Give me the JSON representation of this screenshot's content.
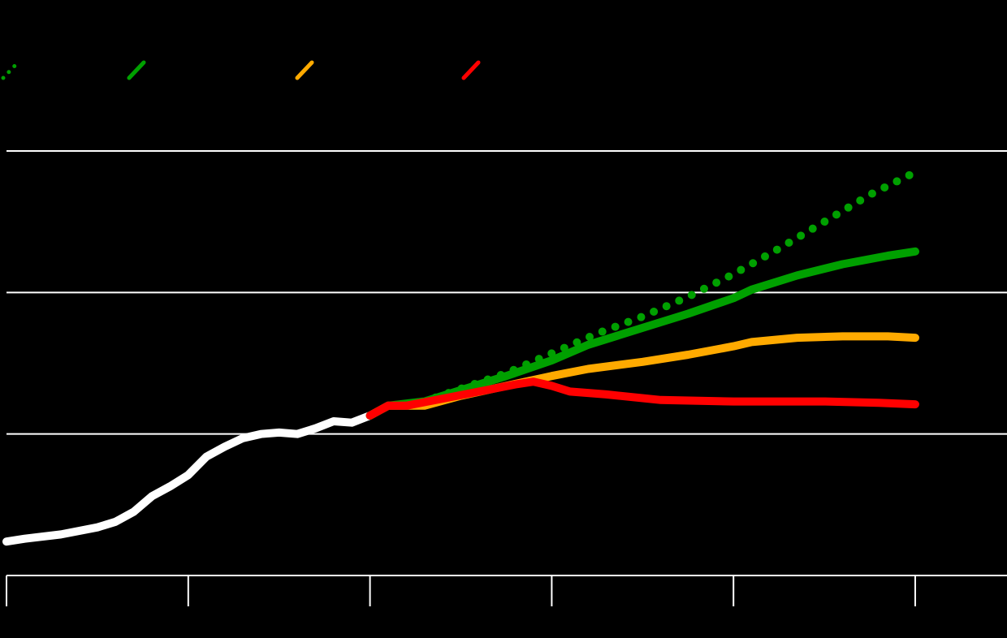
{
  "chart_data": {
    "type": "line",
    "background": "#000000",
    "grid": true,
    "legend_placement": "top-left",
    "x": [
      0,
      1,
      2,
      3,
      4,
      5
    ],
    "ylim": [
      0,
      4
    ],
    "gridlines_y": [
      1,
      2,
      3
    ],
    "colors": {
      "axis": "#ffffff",
      "grid": "#ffffff",
      "historical": "#ffffff",
      "green": "#00a000",
      "orange": "#ffaa00",
      "red": "#ff0000"
    },
    "legend": [
      {
        "series": "green-dotted",
        "style": "dotted",
        "color": "#00a000"
      },
      {
        "series": "green",
        "style": "solid",
        "color": "#00a000"
      },
      {
        "series": "orange",
        "style": "solid",
        "color": "#ffaa00"
      },
      {
        "series": "red",
        "style": "solid",
        "color": "#ff0000"
      }
    ],
    "series": [
      {
        "id": "historical",
        "style": "solid",
        "color": "#ffffff",
        "points": [
          [
            0,
            0.24
          ],
          [
            0.1,
            0.26
          ],
          [
            0.3,
            0.29
          ],
          [
            0.5,
            0.34
          ],
          [
            0.6,
            0.38
          ],
          [
            0.7,
            0.45
          ],
          [
            0.8,
            0.56
          ],
          [
            0.9,
            0.63
          ],
          [
            1.0,
            0.71
          ],
          [
            1.1,
            0.84
          ],
          [
            1.2,
            0.91
          ],
          [
            1.3,
            0.97
          ],
          [
            1.4,
            1.0
          ],
          [
            1.5,
            1.01
          ],
          [
            1.6,
            1.0
          ],
          [
            1.7,
            1.04
          ],
          [
            1.8,
            1.09
          ],
          [
            1.9,
            1.08
          ],
          [
            2.0,
            1.13
          ]
        ]
      },
      {
        "id": "green-dotted",
        "style": "dotted",
        "color": "#00a000",
        "points": [
          [
            2.0,
            1.13
          ],
          [
            2.1,
            1.2
          ],
          [
            2.3,
            1.23
          ],
          [
            2.5,
            1.32
          ],
          [
            2.75,
            1.43
          ],
          [
            3.0,
            1.57
          ],
          [
            3.25,
            1.71
          ],
          [
            3.5,
            1.83
          ],
          [
            3.75,
            1.97
          ],
          [
            4.0,
            2.13
          ],
          [
            4.25,
            2.31
          ],
          [
            4.5,
            2.5
          ],
          [
            4.75,
            2.69
          ],
          [
            5.0,
            2.85
          ]
        ]
      },
      {
        "id": "green",
        "style": "solid",
        "color": "#00a000",
        "points": [
          [
            2.0,
            1.13
          ],
          [
            2.1,
            1.2
          ],
          [
            2.3,
            1.23
          ],
          [
            2.5,
            1.31
          ],
          [
            2.75,
            1.41
          ],
          [
            3.0,
            1.52
          ],
          [
            3.2,
            1.63
          ],
          [
            3.5,
            1.75
          ],
          [
            3.75,
            1.85
          ],
          [
            4.0,
            1.96
          ],
          [
            4.1,
            2.02
          ],
          [
            4.35,
            2.12
          ],
          [
            4.6,
            2.2
          ],
          [
            4.85,
            2.26
          ],
          [
            5.0,
            2.29
          ]
        ]
      },
      {
        "id": "orange",
        "style": "solid",
        "color": "#ffaa00",
        "points": [
          [
            2.0,
            1.13
          ],
          [
            2.1,
            1.2
          ],
          [
            2.3,
            1.2
          ],
          [
            2.5,
            1.27
          ],
          [
            2.75,
            1.34
          ],
          [
            3.0,
            1.41
          ],
          [
            3.2,
            1.46
          ],
          [
            3.5,
            1.51
          ],
          [
            3.75,
            1.56
          ],
          [
            4.0,
            1.62
          ],
          [
            4.1,
            1.65
          ],
          [
            4.35,
            1.68
          ],
          [
            4.6,
            1.69
          ],
          [
            4.85,
            1.69
          ],
          [
            5.0,
            1.68
          ]
        ]
      },
      {
        "id": "red",
        "style": "solid",
        "color": "#ff0000",
        "points": [
          [
            2.0,
            1.13
          ],
          [
            2.1,
            1.2
          ],
          [
            2.2,
            1.2
          ],
          [
            2.4,
            1.25
          ],
          [
            2.6,
            1.3
          ],
          [
            2.8,
            1.35
          ],
          [
            2.9,
            1.37
          ],
          [
            3.0,
            1.34
          ],
          [
            3.1,
            1.3
          ],
          [
            3.3,
            1.28
          ],
          [
            3.6,
            1.24
          ],
          [
            4.0,
            1.23
          ],
          [
            4.2,
            1.23
          ],
          [
            4.5,
            1.23
          ],
          [
            4.8,
            1.22
          ],
          [
            5.0,
            1.21
          ]
        ]
      }
    ]
  }
}
